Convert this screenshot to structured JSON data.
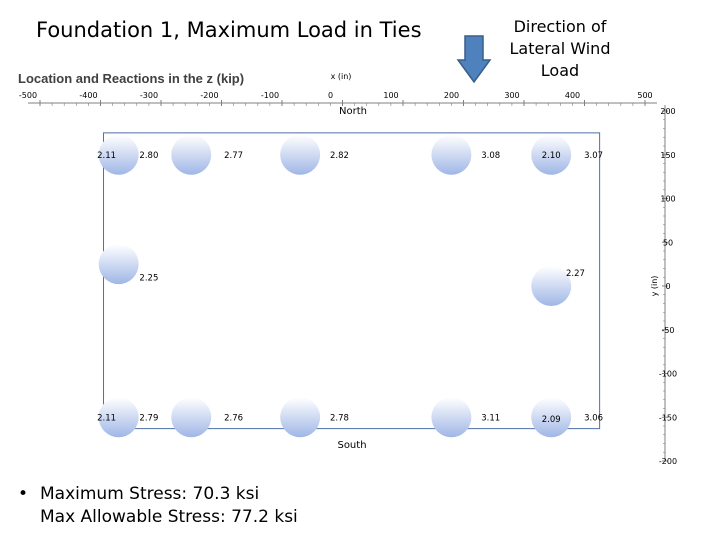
{
  "slide": {
    "title": "Foundation 1, Maximum Load in Ties",
    "wind_label": "Direction of\nLateral Wind\nLoad",
    "bullets": [
      "Maximum Stress: 70.3 ksi",
      "Max Allowable Stress: 77.2 ksi"
    ]
  },
  "colors": {
    "pile_light": "#ffffff",
    "pile_dark": "#9fb6e6",
    "outline": "#4f6fa8",
    "arrow_fill": "#4f81bd",
    "arrow_stroke": "#385d8a",
    "axis": "#808080"
  },
  "icons": {
    "wind_arrow": "down-arrow-icon"
  },
  "chart_data": {
    "type": "scatter",
    "title": "Location and Reactions in the z (kip)",
    "xlabel": "x (in)",
    "ylabel": "y (in)",
    "xlim": [
      -500,
      500
    ],
    "ylim": [
      -200,
      200
    ],
    "xticks": [
      "-500",
      "-400",
      "-300",
      "-200",
      "-100",
      "0",
      "100",
      "200",
      "300",
      "400",
      "500"
    ],
    "yticks": [
      "200",
      "150",
      "100",
      "50",
      "0",
      "-50",
      "-100",
      "-150",
      "-200"
    ],
    "edge_labels": {
      "top": "North",
      "bottom": "South"
    },
    "piles": [
      {
        "x": -370,
        "y": 150
      },
      {
        "x": -250,
        "y": 150
      },
      {
        "x": -70,
        "y": 150
      },
      {
        "x": 180,
        "y": 150
      },
      {
        "x": 345,
        "y": 150
      },
      {
        "x": -370,
        "y": 25
      },
      {
        "x": 345,
        "y": 0
      },
      {
        "x": -370,
        "y": -150
      },
      {
        "x": -250,
        "y": -150
      },
      {
        "x": -70,
        "y": -150
      },
      {
        "x": 180,
        "y": -150
      },
      {
        "x": 345,
        "y": -150
      }
    ],
    "footprint": {
      "x": [
        -395,
        425
      ],
      "y": [
        -163,
        175
      ]
    },
    "reactions": [
      {
        "label": "2.11",
        "x": -390,
        "y": 150
      },
      {
        "label": "2.80",
        "x": -320,
        "y": 150
      },
      {
        "label": "2.77",
        "x": -180,
        "y": 150
      },
      {
        "label": "2.82",
        "x": -5,
        "y": 150
      },
      {
        "label": "3.08",
        "x": 245,
        "y": 150
      },
      {
        "label": "2.10",
        "x": 345,
        "y": 150
      },
      {
        "label": "3.07",
        "x": 415,
        "y": 150
      },
      {
        "label": "2.25",
        "x": -320,
        "y": 10
      },
      {
        "label": "2.27",
        "x": 385,
        "y": 15
      },
      {
        "label": "2.11",
        "x": -390,
        "y": -150
      },
      {
        "label": "2.79",
        "x": -320,
        "y": -150
      },
      {
        "label": "2.76",
        "x": -180,
        "y": -150
      },
      {
        "label": "2.78",
        "x": -5,
        "y": -150
      },
      {
        "label": "3.11",
        "x": 245,
        "y": -150
      },
      {
        "label": "2.09",
        "x": 345,
        "y": -152
      },
      {
        "label": "3.06",
        "x": 415,
        "y": -150
      }
    ]
  }
}
